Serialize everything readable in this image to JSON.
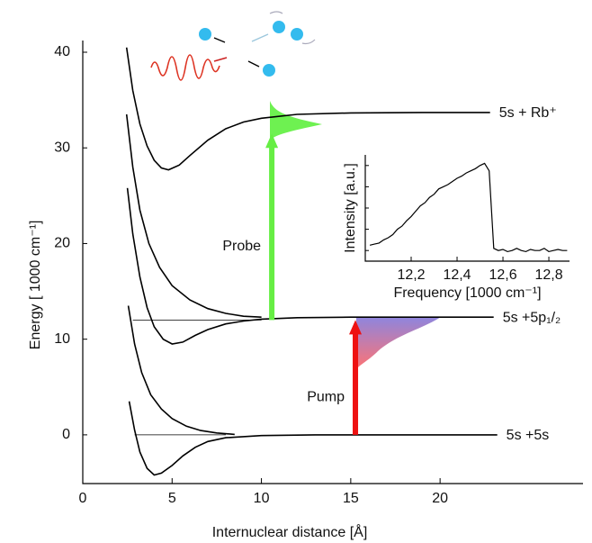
{
  "chart_data": [
    {
      "type": "line",
      "x_label": "Internuclear distance [Å]",
      "y_label": "Energy [ 1000 cm⁻¹]",
      "xlim": [
        0,
        28
      ],
      "ylim": [
        -5,
        42
      ],
      "xticks": [
        0,
        5,
        10,
        15,
        20
      ],
      "yticks": [
        0,
        10,
        20,
        30,
        40
      ],
      "series": [
        {
          "label": "5s + Rb⁺",
          "color": "#000000",
          "x": [
            2.45,
            2.8,
            3.2,
            3.6,
            4.0,
            4.4,
            4.8,
            5.4,
            6.0,
            7,
            8,
            9,
            10,
            12,
            15,
            19,
            22.8
          ],
          "values": [
            40.5,
            36,
            32.5,
            30.2,
            28.7,
            27.9,
            27.7,
            28.2,
            29.2,
            30.8,
            32,
            32.7,
            33.1,
            33.5,
            33.65,
            33.7,
            33.7
          ]
        },
        {
          "color": "#000000",
          "x": [
            2.45,
            2.8,
            3.2,
            3.7,
            4.3,
            5,
            6,
            7,
            8,
            9,
            10
          ],
          "values": [
            33.5,
            28,
            23.5,
            20,
            17.5,
            15.6,
            14.1,
            13.2,
            12.7,
            12.4,
            12.3
          ]
        },
        {
          "label": "5s +5p₁/₂",
          "color": "#000000",
          "x": [
            2.5,
            2.8,
            3.2,
            3.6,
            4.0,
            4.5,
            5.0,
            5.6,
            6.3,
            7,
            8,
            9,
            10,
            12,
            15,
            19,
            23
          ],
          "values": [
            25.8,
            21,
            16.5,
            13.3,
            11.3,
            10,
            9.5,
            9.7,
            10.4,
            11,
            11.6,
            11.9,
            12.1,
            12.25,
            12.3,
            12.3,
            12.3
          ]
        },
        {
          "color": "#000000",
          "x": [
            2.55,
            2.9,
            3.3,
            3.8,
            4.4,
            5,
            5.8,
            6.6,
            7.5,
            8.5
          ],
          "values": [
            13.5,
            9.5,
            6.5,
            4.2,
            2.7,
            1.7,
            0.9,
            0.45,
            0.2,
            0.05
          ]
        },
        {
          "label": "5s +5s",
          "color": "#000000",
          "x": [
            2.6,
            2.9,
            3.2,
            3.6,
            4.0,
            4.4,
            5,
            5.6,
            6.3,
            7,
            8,
            10,
            13,
            17,
            23.2
          ],
          "values": [
            3.5,
            0.5,
            -1.8,
            -3.5,
            -4.2,
            -4.0,
            -3.2,
            -2.2,
            -1.3,
            -0.7,
            -0.3,
            -0.08,
            0,
            0,
            0
          ]
        }
      ],
      "levels": [
        {
          "x": [
            2.8,
            10
          ],
          "values": [
            12,
            12
          ]
        },
        {
          "x": [
            2.9,
            8
          ],
          "values": [
            0,
            0
          ]
        }
      ],
      "arrows": [
        {
          "label": "Probe",
          "x": 10.58,
          "from": 12,
          "to": 31.5,
          "color": "#66ee44"
        },
        {
          "label": "Pump",
          "x": 15.26,
          "from": 0,
          "to": 12,
          "color": "#ee1111"
        }
      ]
    },
    {
      "type": "line",
      "x_label": "Frequency [1000 cm⁻¹]",
      "y_label": "Intensity [a.u.]",
      "xlim": [
        12.0,
        12.89
      ],
      "ylim": [
        0,
        1
      ],
      "xticks": [
        {
          "value": 12.2,
          "label": "12,2"
        },
        {
          "value": 12.4,
          "label": "12,4"
        },
        {
          "value": 12.6,
          "label": "12,6"
        },
        {
          "value": 12.8,
          "label": "12,8"
        }
      ],
      "series": [
        {
          "color": "#000000",
          "x": [
            12.02,
            12.04,
            12.06,
            12.08,
            12.1,
            12.12,
            12.14,
            12.16,
            12.18,
            12.2,
            12.22,
            12.24,
            12.26,
            12.28,
            12.3,
            12.32,
            12.34,
            12.36,
            12.38,
            12.4,
            12.42,
            12.44,
            12.46,
            12.48,
            12.5,
            12.52,
            12.54,
            12.56,
            12.58,
            12.6,
            12.62,
            12.64,
            12.66,
            12.68,
            12.7,
            12.72,
            12.74,
            12.76,
            12.78,
            12.8,
            12.82,
            12.84,
            12.86,
            12.88
          ],
          "values": [
            0.15,
            0.16,
            0.17,
            0.2,
            0.22,
            0.25,
            0.3,
            0.33,
            0.38,
            0.42,
            0.47,
            0.52,
            0.55,
            0.6,
            0.63,
            0.68,
            0.7,
            0.72,
            0.75,
            0.78,
            0.8,
            0.83,
            0.85,
            0.87,
            0.9,
            0.92,
            0.85,
            0.12,
            0.1,
            0.11,
            0.09,
            0.1,
            0.12,
            0.1,
            0.09,
            0.11,
            0.1,
            0.1,
            0.12,
            0.09,
            0.1,
            0.11,
            0.1,
            0.1
          ]
        }
      ]
    }
  ]
}
